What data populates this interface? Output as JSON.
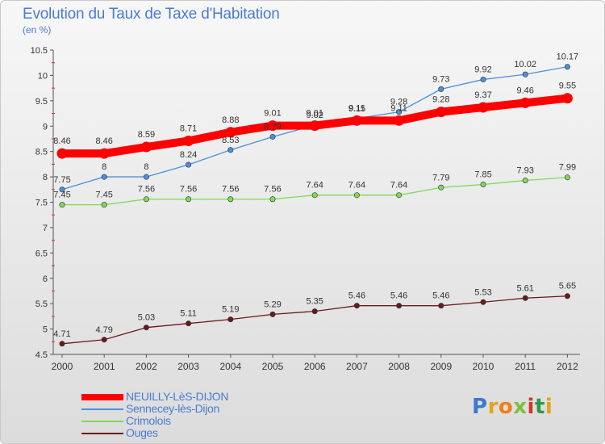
{
  "chart_data": {
    "type": "line",
    "title": "Evolution du Taux de Taxe d'Habitation",
    "subtitle": "(en %)",
    "x": [
      "2000",
      "2001",
      "2002",
      "2003",
      "2004",
      "2005",
      "2006",
      "2007",
      "2008",
      "2009",
      "2010",
      "2011",
      "2012"
    ],
    "ylim": [
      4.5,
      10.5
    ],
    "yticks": [
      "4.5",
      "5",
      "5.5",
      "6",
      "6.5",
      "7",
      "7.5",
      "8",
      "8.5",
      "9",
      "9.5",
      "10",
      "10.5"
    ],
    "grid": false,
    "legend_position": "bottom-left",
    "series": [
      {
        "name": "NEUILLY-LèS-DIJON",
        "color": "#ff0000",
        "values": [
          8.46,
          8.46,
          8.59,
          8.71,
          8.88,
          9.01,
          9.01,
          9.11,
          9.11,
          9.28,
          9.37,
          9.46,
          9.55
        ],
        "labels": [
          "8.46",
          "8.46",
          "8.59",
          "8.71",
          "8.88",
          "9.01",
          "9.01",
          "9.11",
          "9.11",
          "9.28",
          "9.37",
          "9.46",
          "9.55"
        ]
      },
      {
        "name": "Sennecey-lès-Dijon",
        "color": "#4a90d9",
        "values": [
          7.75,
          8,
          8,
          8.24,
          8.53,
          8.79,
          9.02,
          9.15,
          9.28,
          9.73,
          9.92,
          10.02,
          10.17
        ],
        "labels": [
          "7.75",
          "8",
          "8",
          "8.24",
          "8.53",
          "8.79",
          "9.02",
          "9.15",
          "9.28",
          "9.73",
          "9.92",
          "10.02",
          "10.17"
        ]
      },
      {
        "name": "Crimolois",
        "color": "#7ed957",
        "values": [
          7.45,
          7.45,
          7.56,
          7.56,
          7.56,
          7.56,
          7.64,
          7.64,
          7.64,
          7.79,
          7.85,
          7.93,
          7.99
        ],
        "labels": [
          "7.45",
          "7.45",
          "7.56",
          "7.56",
          "7.56",
          "7.56",
          "7.64",
          "7.64",
          "7.64",
          "7.79",
          "7.85",
          "7.93",
          "7.99"
        ]
      },
      {
        "name": "Ouges",
        "color": "#6b1a1a",
        "values": [
          4.71,
          4.79,
          5.03,
          5.11,
          5.19,
          5.29,
          5.35,
          5.46,
          5.46,
          5.46,
          5.53,
          5.61,
          5.65
        ],
        "labels": [
          "4.71",
          "4.79",
          "5.03",
          "5.11",
          "5.19",
          "5.29",
          "5.35",
          "5.46",
          "5.46",
          "5.46",
          "5.53",
          "5.61",
          "5.65"
        ]
      }
    ]
  },
  "logo": {
    "letters": [
      "P",
      "r",
      "o",
      "x",
      "i",
      "t",
      "i"
    ],
    "colors": [
      "#3a7ad0",
      "#e6a21c",
      "#f07d1a",
      "#7cc13c",
      "#d8332f",
      "#2e9a48",
      "#e6a21c"
    ]
  }
}
